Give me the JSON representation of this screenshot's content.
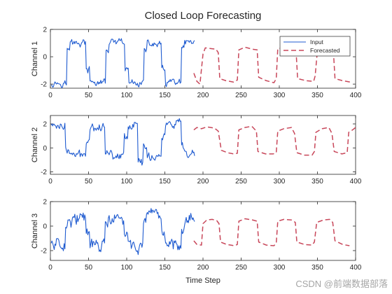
{
  "figure": {
    "title": "Closed Loop Forecasting",
    "xlabel": "Time Step"
  },
  "watermark": "CSDN @前端数据部落",
  "colors": {
    "input": "#1f5bd0",
    "forecast": "#c8475a",
    "axis": "#262626"
  },
  "chart_data": [
    {
      "type": "line",
      "ylabel": "Channel 1",
      "xlim": [
        0,
        400
      ],
      "ylim": [
        -2.3,
        2
      ],
      "xticks": [
        0,
        50,
        100,
        150,
        200,
        250,
        300,
        350,
        400
      ],
      "yticks": [
        -2,
        0,
        2
      ],
      "legend": {
        "placement": "top-right",
        "entries": [
          "Input",
          "Forecasted"
        ]
      },
      "series": [
        {
          "name": "Input",
          "style": "solid",
          "x_range": [
            1,
            189
          ],
          "segments": [
            {
              "x0": 1,
              "x1": 22,
              "level": -1.9
            },
            {
              "x0": 22,
              "x1": 26,
              "level": 0.5
            },
            {
              "x0": 26,
              "x1": 47,
              "level": 1.0
            },
            {
              "x0": 47,
              "x1": 52,
              "level": -1.0
            },
            {
              "x0": 52,
              "x1": 73,
              "level": -1.9
            },
            {
              "x0": 73,
              "x1": 77,
              "level": 0.5
            },
            {
              "x0": 77,
              "x1": 98,
              "level": 1.0
            },
            {
              "x0": 98,
              "x1": 103,
              "level": -1.0
            },
            {
              "x0": 103,
              "x1": 123,
              "level": -1.9
            },
            {
              "x0": 123,
              "x1": 127,
              "level": 0.5
            },
            {
              "x0": 127,
              "x1": 146,
              "level": 0.9
            },
            {
              "x0": 146,
              "x1": 151,
              "level": -1.0
            },
            {
              "x0": 151,
              "x1": 172,
              "level": -1.9
            },
            {
              "x0": 172,
              "x1": 176,
              "level": 0.5
            },
            {
              "x0": 176,
              "x1": 189,
              "level": 1.0
            }
          ],
          "noise": 0.25
        },
        {
          "name": "Forecasted",
          "style": "dashed",
          "points": [
            [
              188,
              -1.2
            ],
            [
              192,
              -1.8
            ],
            [
              196,
              -2.0
            ],
            [
              200,
              0.2
            ],
            [
              203,
              0.65
            ],
            [
              210,
              0.6
            ],
            [
              217,
              0.55
            ],
            [
              220,
              0.3
            ],
            [
              222,
              -1.6
            ],
            [
              230,
              -1.75
            ],
            [
              240,
              -1.85
            ],
            [
              245,
              -1.7
            ],
            [
              247,
              0.5
            ],
            [
              255,
              0.7
            ],
            [
              265,
              0.55
            ],
            [
              271,
              0.5
            ],
            [
              273,
              -1.5
            ],
            [
              283,
              -1.75
            ],
            [
              293,
              -1.9
            ],
            [
              296,
              -1.6
            ],
            [
              298,
              0.6
            ],
            [
              308,
              0.65
            ],
            [
              318,
              0.5
            ],
            [
              322,
              0.4
            ],
            [
              324,
              -1.6
            ],
            [
              335,
              -1.75
            ],
            [
              345,
              -1.8
            ],
            [
              347,
              -1.4
            ],
            [
              350,
              0.5
            ],
            [
              358,
              0.55
            ],
            [
              368,
              0.5
            ],
            [
              371,
              0.3
            ],
            [
              373,
              -1.6
            ],
            [
              383,
              -1.75
            ],
            [
              393,
              -1.85
            ]
          ]
        }
      ]
    },
    {
      "type": "line",
      "ylabel": "Channel 2",
      "xlim": [
        0,
        400
      ],
      "ylim": [
        -2.2,
        2.7
      ],
      "xticks": [
        0,
        50,
        100,
        150,
        200,
        250,
        300,
        350,
        400
      ],
      "yticks": [
        -2,
        0,
        2
      ],
      "series": [
        {
          "name": "Input",
          "style": "solid",
          "x_range": [
            1,
            189
          ],
          "segments": [
            {
              "x0": 1,
              "x1": 20,
              "level": 1.9
            },
            {
              "x0": 20,
              "x1": 26,
              "level": -0.3
            },
            {
              "x0": 26,
              "x1": 47,
              "level": -0.6
            },
            {
              "x0": 47,
              "x1": 52,
              "level": 0.8
            },
            {
              "x0": 52,
              "x1": 72,
              "level": 1.8
            },
            {
              "x0": 72,
              "x1": 77,
              "level": -0.2
            },
            {
              "x0": 77,
              "x1": 97,
              "level": -0.6
            },
            {
              "x0": 97,
              "x1": 102,
              "level": 1.0
            },
            {
              "x0": 102,
              "x1": 115,
              "level": 1.9
            },
            {
              "x0": 115,
              "x1": 122,
              "level": -1.2
            },
            {
              "x0": 122,
              "x1": 127,
              "level": 0.2
            },
            {
              "x0": 127,
              "x1": 146,
              "level": -0.7
            },
            {
              "x0": 146,
              "x1": 151,
              "level": 1.0
            },
            {
              "x0": 151,
              "x1": 172,
              "level": 1.9
            },
            {
              "x0": 172,
              "x1": 176,
              "level": 0.0
            },
            {
              "x0": 176,
              "x1": 189,
              "level": -0.6
            }
          ],
          "noise": 0.35
        },
        {
          "name": "Forecasted",
          "style": "dashed",
          "points": [
            [
              188,
              1.5
            ],
            [
              192,
              1.7
            ],
            [
              198,
              1.6
            ],
            [
              205,
              1.75
            ],
            [
              215,
              1.65
            ],
            [
              220,
              1.4
            ],
            [
              224,
              -0.2
            ],
            [
              232,
              -0.4
            ],
            [
              240,
              -0.5
            ],
            [
              245,
              -0.45
            ],
            [
              247,
              1.5
            ],
            [
              255,
              1.7
            ],
            [
              264,
              1.8
            ],
            [
              270,
              1.4
            ],
            [
              272,
              -0.3
            ],
            [
              282,
              -0.5
            ],
            [
              292,
              -0.5
            ],
            [
              296,
              -0.4
            ],
            [
              298,
              1.4
            ],
            [
              306,
              1.6
            ],
            [
              316,
              1.7
            ],
            [
              320,
              1.2
            ],
            [
              323,
              -0.4
            ],
            [
              333,
              -0.6
            ],
            [
              343,
              -0.6
            ],
            [
              346,
              -0.3
            ],
            [
              348,
              1.3
            ],
            [
              356,
              1.6
            ],
            [
              365,
              1.7
            ],
            [
              369,
              1.2
            ],
            [
              372,
              -0.3
            ],
            [
              382,
              -0.5
            ],
            [
              389,
              -0.4
            ],
            [
              391,
              1.3
            ],
            [
              396,
              1.5
            ],
            [
              400,
              1.7
            ]
          ]
        }
      ]
    },
    {
      "type": "line",
      "ylabel": "Channel 3",
      "xlim": [
        0,
        400
      ],
      "ylim": [
        -2.8,
        2
      ],
      "xticks": [
        0,
        50,
        100,
        150,
        200,
        250,
        300,
        350,
        400
      ],
      "yticks": [
        -2,
        0,
        2
      ],
      "series": [
        {
          "name": "Input",
          "style": "solid",
          "x_range": [
            1,
            189
          ],
          "segments": [
            {
              "x0": 1,
              "x1": 20,
              "level": -1.4
            },
            {
              "x0": 20,
              "x1": 25,
              "level": 0.2
            },
            {
              "x0": 25,
              "x1": 47,
              "level": 0.6
            },
            {
              "x0": 47,
              "x1": 52,
              "level": -0.6
            },
            {
              "x0": 52,
              "x1": 72,
              "level": -1.6
            },
            {
              "x0": 72,
              "x1": 76,
              "level": 0.0
            },
            {
              "x0": 76,
              "x1": 97,
              "level": 0.5
            },
            {
              "x0": 97,
              "x1": 102,
              "level": -0.8
            },
            {
              "x0": 102,
              "x1": 122,
              "level": -1.6
            },
            {
              "x0": 122,
              "x1": 126,
              "level": 0.1
            },
            {
              "x0": 126,
              "x1": 146,
              "level": 0.6
            },
            {
              "x0": 146,
              "x1": 151,
              "level": -0.6
            },
            {
              "x0": 151,
              "x1": 172,
              "level": -1.4
            },
            {
              "x0": 172,
              "x1": 176,
              "level": 0.0
            },
            {
              "x0": 176,
              "x1": 189,
              "level": 0.6
            }
          ],
          "noise": 0.5
        },
        {
          "name": "Forecasted",
          "style": "dashed",
          "points": [
            [
              188,
              -1.2
            ],
            [
              192,
              -1.5
            ],
            [
              198,
              -1.55
            ],
            [
              200,
              0.2
            ],
            [
              205,
              0.5
            ],
            [
              212,
              0.55
            ],
            [
              218,
              0.45
            ],
            [
              221,
              0.2
            ],
            [
              223,
              -1.3
            ],
            [
              231,
              -1.5
            ],
            [
              241,
              -1.6
            ],
            [
              245,
              -1.5
            ],
            [
              247,
              0.4
            ],
            [
              255,
              0.6
            ],
            [
              265,
              0.5
            ],
            [
              271,
              0.4
            ],
            [
              273,
              -1.3
            ],
            [
              283,
              -1.55
            ],
            [
              293,
              -1.6
            ],
            [
              296,
              -1.4
            ],
            [
              298,
              0.4
            ],
            [
              306,
              0.55
            ],
            [
              316,
              0.5
            ],
            [
              321,
              0.3
            ],
            [
              323,
              -1.3
            ],
            [
              333,
              -1.5
            ],
            [
              343,
              -1.55
            ],
            [
              346,
              -1.3
            ],
            [
              349,
              0.3
            ],
            [
              358,
              0.5
            ],
            [
              366,
              0.55
            ],
            [
              370,
              0.3
            ],
            [
              373,
              -1.2
            ],
            [
              383,
              -1.5
            ],
            [
              392,
              -1.6
            ]
          ]
        }
      ]
    }
  ]
}
